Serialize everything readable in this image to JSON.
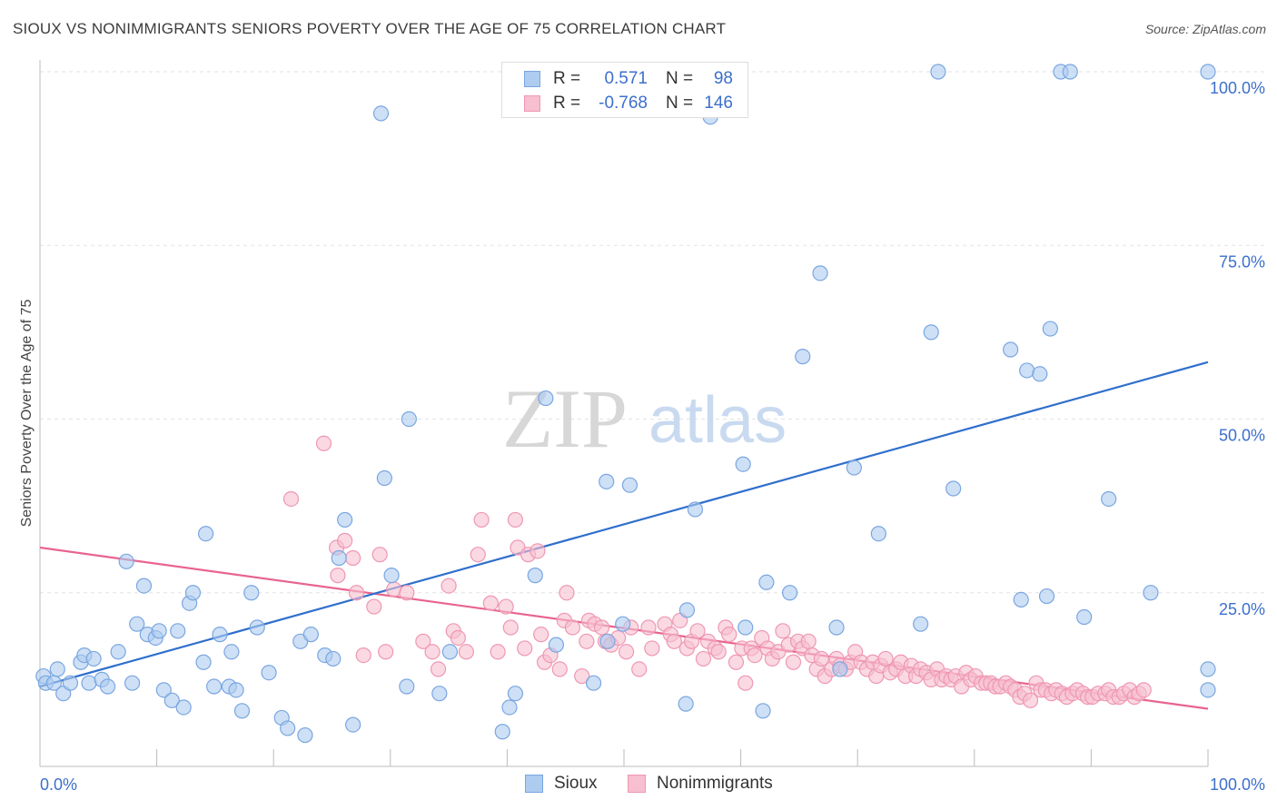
{
  "header": {
    "title": "SIOUX VS NONIMMIGRANTS SENIORS POVERTY OVER THE AGE OF 75 CORRELATION CHART",
    "source": "Source: ZipAtlas.com"
  },
  "legend_top": {
    "rows": [
      {
        "r_label": "R =",
        "r_value": "0.571",
        "n_label": "N =",
        "n_value": "98"
      },
      {
        "r_label": "R =",
        "r_value": "-0.768",
        "n_label": "N =",
        "n_value": "146"
      }
    ]
  },
  "legend_bottom": {
    "items": [
      {
        "label": "Sioux"
      },
      {
        "label": "Nonimmigrants"
      }
    ]
  },
  "watermark": {
    "zip": "ZIP",
    "atlas": "atlas"
  },
  "colors": {
    "sioux_fill": "#aecbf0",
    "sioux_stroke": "#7aa6e0",
    "sioux_line": "#2f6fcd",
    "nonimm_fill": "#f7bfd0",
    "nonimm_stroke": "#ef97b3",
    "nonimm_line": "#e8648f",
    "tick_label": "#3d6fcc",
    "grid": "#e2e2e2"
  },
  "chart_data": {
    "type": "scatter",
    "title": "SIOUX VS NONIMMIGRANTS SENIORS POVERTY OVER THE AGE OF 75 CORRELATION CHART",
    "xlabel": "",
    "ylabel": "Seniors Poverty Over the Age of 75",
    "xlim": [
      0,
      100
    ],
    "ylim": [
      0,
      100
    ],
    "x_tick_labels": [
      {
        "value": 0,
        "label": "0.0%"
      },
      {
        "value": 100,
        "label": "100.0%"
      }
    ],
    "y_tick_labels": [
      {
        "value": 25,
        "label": "25.0%"
      },
      {
        "value": 50,
        "label": "50.0%"
      },
      {
        "value": 75,
        "label": "75.0%"
      },
      {
        "value": 100,
        "label": "100.0%"
      }
    ],
    "grid": true,
    "legend": "top-center",
    "series": [
      {
        "name": "Sioux",
        "trend": {
          "x": [
            0,
            100
          ],
          "y": [
            11.5,
            58.2
          ]
        },
        "points": [
          [
            0.3,
            13
          ],
          [
            0.5,
            12
          ],
          [
            1.2,
            12
          ],
          [
            1.5,
            14
          ],
          [
            2,
            10.5
          ],
          [
            2.6,
            12
          ],
          [
            3.5,
            15
          ],
          [
            3.8,
            16
          ],
          [
            4.2,
            12
          ],
          [
            4.6,
            15.5
          ],
          [
            5.3,
            12.5
          ],
          [
            5.8,
            11.5
          ],
          [
            6.7,
            16.5
          ],
          [
            7.4,
            29.5
          ],
          [
            7.9,
            12
          ],
          [
            8.3,
            20.5
          ],
          [
            8.9,
            26
          ],
          [
            9.2,
            19
          ],
          [
            9.9,
            18.5
          ],
          [
            10.2,
            19.5
          ],
          [
            10.6,
            11
          ],
          [
            11.3,
            9.5
          ],
          [
            11.8,
            19.5
          ],
          [
            12.3,
            8.5
          ],
          [
            12.8,
            23.5
          ],
          [
            13.1,
            25
          ],
          [
            14,
            15
          ],
          [
            14.2,
            33.5
          ],
          [
            14.9,
            11.5
          ],
          [
            15.4,
            19
          ],
          [
            16.2,
            11.5
          ],
          [
            16.4,
            16.5
          ],
          [
            16.8,
            11
          ],
          [
            17.3,
            8
          ],
          [
            18.1,
            25
          ],
          [
            18.6,
            20
          ],
          [
            19.6,
            13.5
          ],
          [
            20.7,
            7
          ],
          [
            21.2,
            5.5
          ],
          [
            22.7,
            4.5
          ],
          [
            22.3,
            18
          ],
          [
            23.2,
            19
          ],
          [
            24.4,
            16
          ],
          [
            25.1,
            15.5
          ],
          [
            25.6,
            30
          ],
          [
            26.1,
            35.5
          ],
          [
            26.8,
            6
          ],
          [
            29.2,
            94
          ],
          [
            29.5,
            41.5
          ],
          [
            30.1,
            27.5
          ],
          [
            31.4,
            11.5
          ],
          [
            31.6,
            50
          ],
          [
            34.2,
            10.5
          ],
          [
            35.1,
            16.5
          ],
          [
            39.6,
            5
          ],
          [
            40.2,
            8.5
          ],
          [
            40.7,
            10.5
          ],
          [
            42.4,
            27.5
          ],
          [
            43.3,
            53
          ],
          [
            44.2,
            17.5
          ],
          [
            47.4,
            12
          ],
          [
            48.5,
            41
          ],
          [
            48.6,
            18
          ],
          [
            49.9,
            20.5
          ],
          [
            50.5,
            40.5
          ],
          [
            55.3,
            9
          ],
          [
            55.4,
            22.5
          ],
          [
            56.1,
            37
          ],
          [
            57.4,
            93.5
          ],
          [
            60.2,
            43.5
          ],
          [
            60.4,
            20
          ],
          [
            61.9,
            8
          ],
          [
            62.2,
            26.5
          ],
          [
            64.2,
            25
          ],
          [
            65.3,
            59
          ],
          [
            66.8,
            71
          ],
          [
            68.2,
            20
          ],
          [
            68.5,
            14
          ],
          [
            69.7,
            43
          ],
          [
            71.8,
            33.5
          ],
          [
            75.4,
            20.5
          ],
          [
            76.3,
            62.5
          ],
          [
            76.9,
            100
          ],
          [
            78.2,
            40
          ],
          [
            83.1,
            60
          ],
          [
            84,
            24
          ],
          [
            84.5,
            57
          ],
          [
            85.6,
            56.5
          ],
          [
            86.2,
            24.5
          ],
          [
            86.5,
            63
          ],
          [
            87.4,
            100
          ],
          [
            88.2,
            100
          ],
          [
            89.4,
            21.5
          ],
          [
            91.5,
            38.5
          ],
          [
            95.1,
            25
          ],
          [
            100,
            100
          ],
          [
            100,
            11
          ],
          [
            100,
            14
          ]
        ]
      },
      {
        "name": "Nonimmigrants",
        "trend": {
          "x": [
            0,
            100
          ],
          "y": [
            31.5,
            8.3
          ]
        },
        "points": [
          [
            21.5,
            38.5
          ],
          [
            24.3,
            46.5
          ],
          [
            25.4,
            31.5
          ],
          [
            25.5,
            27.5
          ],
          [
            26.1,
            32.5
          ],
          [
            26.8,
            30
          ],
          [
            27.1,
            25
          ],
          [
            27.7,
            16
          ],
          [
            28.6,
            23
          ],
          [
            29.1,
            30.5
          ],
          [
            29.6,
            16.5
          ],
          [
            30.3,
            25.5
          ],
          [
            31.4,
            25
          ],
          [
            32.8,
            18
          ],
          [
            33.6,
            16.5
          ],
          [
            34.1,
            14
          ],
          [
            35,
            26
          ],
          [
            35.4,
            19.5
          ],
          [
            35.8,
            18.5
          ],
          [
            36.5,
            16.5
          ],
          [
            37.5,
            30.5
          ],
          [
            37.8,
            35.5
          ],
          [
            38.6,
            23.5
          ],
          [
            39.2,
            16.5
          ],
          [
            39.9,
            23
          ],
          [
            40.3,
            20
          ],
          [
            40.7,
            35.5
          ],
          [
            40.9,
            31.5
          ],
          [
            41.5,
            17
          ],
          [
            41.8,
            30.5
          ],
          [
            42.6,
            31
          ],
          [
            42.9,
            19
          ],
          [
            43.2,
            15
          ],
          [
            43.7,
            16
          ],
          [
            44.5,
            14
          ],
          [
            44.9,
            21
          ],
          [
            45.1,
            25
          ],
          [
            45.6,
            20
          ],
          [
            46.4,
            13
          ],
          [
            46.8,
            18
          ],
          [
            47,
            21
          ],
          [
            47.5,
            20.5
          ],
          [
            48.1,
            20
          ],
          [
            48.4,
            18
          ],
          [
            48.9,
            17.5
          ],
          [
            49.5,
            18.5
          ],
          [
            50.2,
            16.5
          ],
          [
            50.6,
            20
          ],
          [
            51.3,
            14
          ],
          [
            52.1,
            20
          ],
          [
            52.4,
            17
          ],
          [
            53.5,
            20.5
          ],
          [
            54,
            19
          ],
          [
            54.3,
            18
          ],
          [
            54.8,
            21
          ],
          [
            55.4,
            17
          ],
          [
            55.8,
            18
          ],
          [
            56.3,
            19.5
          ],
          [
            56.8,
            15.5
          ],
          [
            57.2,
            18
          ],
          [
            57.8,
            17
          ],
          [
            58.1,
            16.5
          ],
          [
            58.7,
            20
          ],
          [
            59,
            19
          ],
          [
            59.6,
            15
          ],
          [
            60.1,
            17
          ],
          [
            60.4,
            12
          ],
          [
            60.9,
            17
          ],
          [
            61.2,
            16
          ],
          [
            61.8,
            18.5
          ],
          [
            62.3,
            17
          ],
          [
            62.7,
            15.5
          ],
          [
            63.2,
            16.5
          ],
          [
            63.6,
            19.5
          ],
          [
            64.1,
            17.5
          ],
          [
            64.5,
            15
          ],
          [
            64.9,
            18
          ],
          [
            65.3,
            17
          ],
          [
            65.8,
            18
          ],
          [
            66.1,
            16
          ],
          [
            66.5,
            14
          ],
          [
            66.9,
            15.5
          ],
          [
            67.2,
            13
          ],
          [
            67.8,
            14
          ],
          [
            68.2,
            15.5
          ],
          [
            68.5,
            14.5
          ],
          [
            69,
            14
          ],
          [
            69.4,
            15
          ],
          [
            69.8,
            16.5
          ],
          [
            70.3,
            15
          ],
          [
            70.8,
            14
          ],
          [
            71.3,
            15
          ],
          [
            71.6,
            13
          ],
          [
            72,
            14.5
          ],
          [
            72.4,
            15.5
          ],
          [
            72.8,
            13.5
          ],
          [
            73.3,
            14
          ],
          [
            73.7,
            15
          ],
          [
            74.1,
            13
          ],
          [
            74.6,
            14.5
          ],
          [
            75,
            13
          ],
          [
            75.4,
            14
          ],
          [
            75.9,
            13.5
          ],
          [
            76.3,
            12.5
          ],
          [
            76.8,
            14
          ],
          [
            77.2,
            12.5
          ],
          [
            77.6,
            13
          ],
          [
            78,
            12.5
          ],
          [
            78.4,
            13
          ],
          [
            78.9,
            11.5
          ],
          [
            79.3,
            13.5
          ],
          [
            79.7,
            12.5
          ],
          [
            80.1,
            13
          ],
          [
            80.6,
            12
          ],
          [
            81,
            12
          ],
          [
            81.4,
            12
          ],
          [
            81.8,
            11.5
          ],
          [
            82.2,
            11.5
          ],
          [
            82.7,
            12
          ],
          [
            83.1,
            11.5
          ],
          [
            83.5,
            11
          ],
          [
            83.9,
            10
          ],
          [
            84.3,
            10.5
          ],
          [
            84.8,
            9.5
          ],
          [
            85.3,
            12
          ],
          [
            85.7,
            11
          ],
          [
            86.1,
            11
          ],
          [
            86.6,
            10.5
          ],
          [
            87,
            11
          ],
          [
            87.5,
            10.5
          ],
          [
            87.9,
            10
          ],
          [
            88.4,
            10.5
          ],
          [
            88.8,
            11
          ],
          [
            89.3,
            10.5
          ],
          [
            89.7,
            10
          ],
          [
            90.1,
            10
          ],
          [
            90.6,
            10.5
          ],
          [
            91.2,
            10.5
          ],
          [
            91.5,
            11
          ],
          [
            91.9,
            10
          ],
          [
            92.4,
            10
          ],
          [
            92.8,
            10.5
          ],
          [
            93.3,
            11
          ],
          [
            93.7,
            10
          ],
          [
            94.1,
            10.5
          ],
          [
            94.5,
            11
          ]
        ]
      }
    ]
  }
}
